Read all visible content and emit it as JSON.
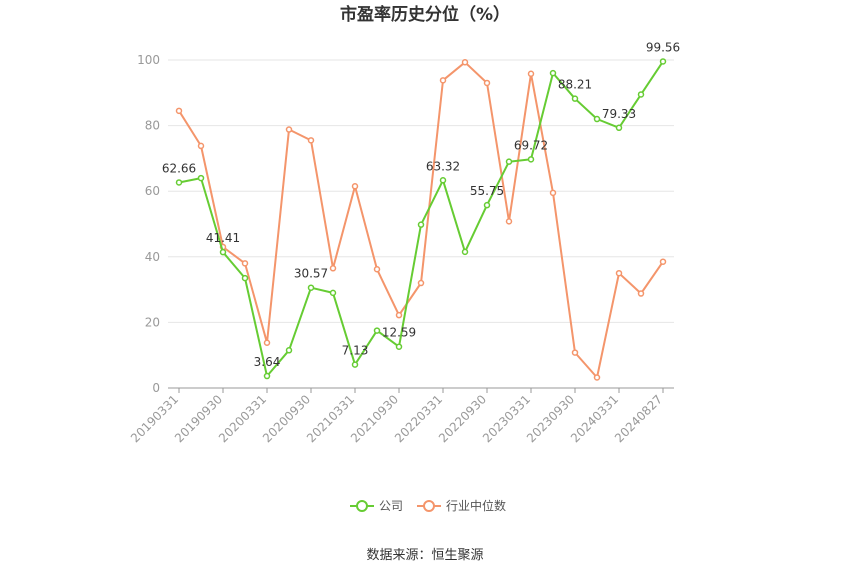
{
  "chart_data": {
    "type": "line",
    "title": "市盈率历史分位（%）",
    "source": "数据来源：恒生聚源",
    "ylim": [
      0,
      100
    ],
    "yticks": [
      0,
      20,
      40,
      60,
      80,
      100
    ],
    "grid": true,
    "legend_position": "bottom",
    "x_tick_labels": [
      "20190331",
      "20190930",
      "20200331",
      "20200930",
      "20210331",
      "20210930",
      "20220331",
      "20220930",
      "20230331",
      "20230930",
      "20240331",
      "20240827"
    ],
    "x_tick_indices": [
      0,
      2,
      4,
      6,
      8,
      10,
      12,
      14,
      16,
      18,
      20,
      22
    ],
    "point_count": 23,
    "series": [
      {
        "name": "公司",
        "color": "#66cc33",
        "values": [
          62.66,
          64,
          41.41,
          33.5,
          3.64,
          11.5,
          30.57,
          29,
          7.13,
          17.5,
          12.59,
          49.8,
          63.32,
          41.5,
          55.75,
          69,
          69.72,
          96,
          88.21,
          82,
          79.33,
          89.5,
          99.56
        ],
        "data_labels": [
          {
            "index": 0,
            "text": "62.66"
          },
          {
            "index": 2,
            "text": "41.41"
          },
          {
            "index": 4,
            "text": "3.64"
          },
          {
            "index": 6,
            "text": "30.57"
          },
          {
            "index": 8,
            "text": "7.13"
          },
          {
            "index": 10,
            "text": "12.59"
          },
          {
            "index": 12,
            "text": "63.32"
          },
          {
            "index": 14,
            "text": "55.75"
          },
          {
            "index": 16,
            "text": "69.72"
          },
          {
            "index": 18,
            "text": "88.21"
          },
          {
            "index": 20,
            "text": "79.33"
          },
          {
            "index": 22,
            "text": "99.56"
          }
        ]
      },
      {
        "name": "行业中位数",
        "color": "#f4956b",
        "values": [
          84.5,
          73.8,
          43,
          38,
          13.8,
          78.8,
          75.5,
          36.5,
          61.5,
          36.2,
          22.2,
          32,
          93.8,
          99.3,
          93,
          50.8,
          95.8,
          59.5,
          10.8,
          3.2,
          35,
          28.8,
          38.5
        ]
      }
    ]
  }
}
